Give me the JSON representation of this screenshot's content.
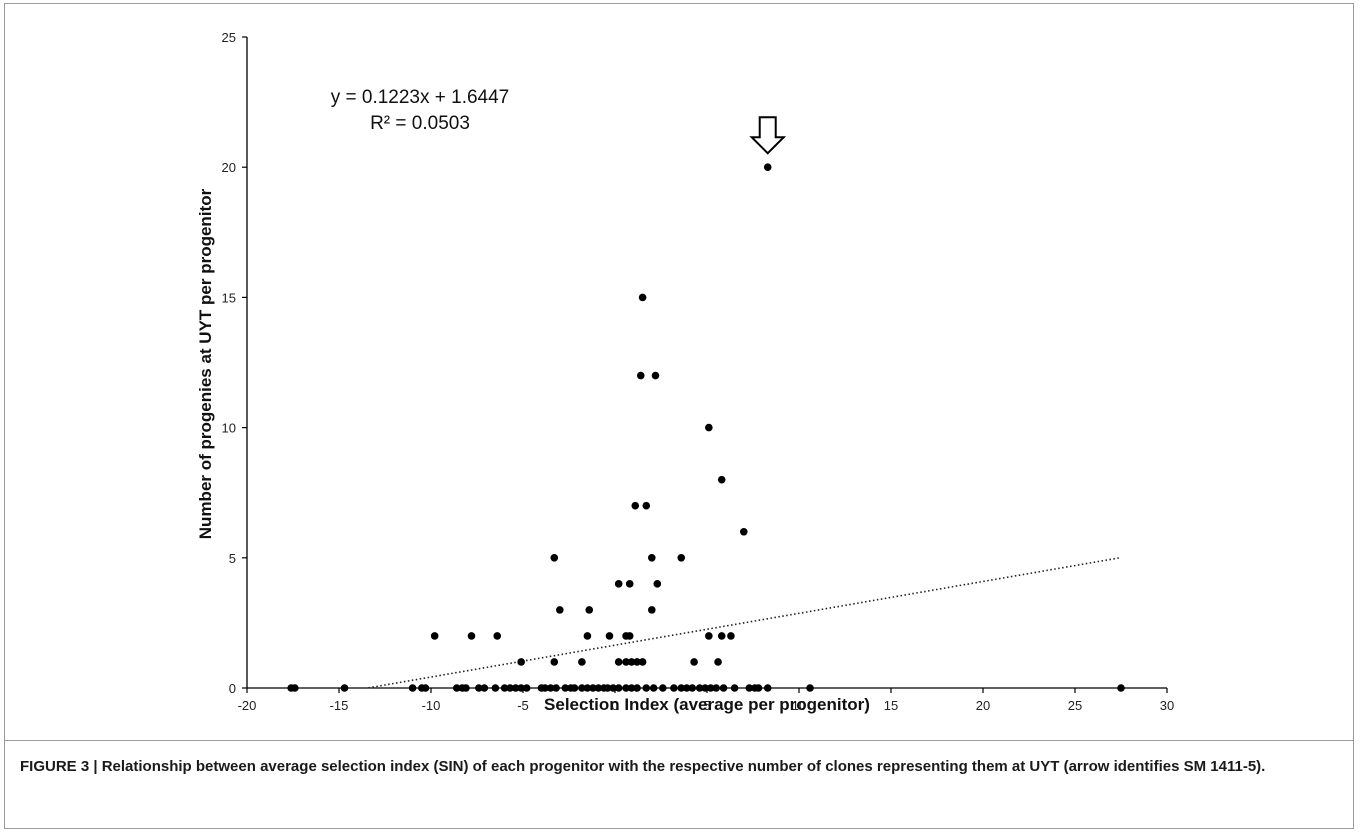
{
  "chart_data": {
    "type": "scatter",
    "title": "",
    "xlabel": "Selection Index (average per progenitor)",
    "ylabel": "Number of progenies at UYT per progenitor",
    "xlim": [
      -20,
      30
    ],
    "ylim": [
      0,
      25
    ],
    "x_ticks": [
      "-20",
      "-15",
      "-10",
      "-5",
      "0",
      "5",
      "10",
      "15",
      "20",
      "25",
      "30"
    ],
    "y_ticks": [
      "0",
      "5",
      "10",
      "15",
      "20",
      "25"
    ],
    "grid": false,
    "legend": "none",
    "point_color": "#000000",
    "trendline": {
      "style": "dotted",
      "slope": 0.1223,
      "intercept": 1.6447,
      "x_range": [
        -13.4,
        27.5
      ],
      "equation": "y = 0.1223x + 1.6447",
      "r_squared": "R² = 0.0503"
    },
    "annotation": {
      "type": "arrow",
      "x": 8.3,
      "y": 20
    },
    "points": [
      {
        "x": -17.6,
        "y": 0
      },
      {
        "x": -17.4,
        "y": 0
      },
      {
        "x": -14.7,
        "y": 0
      },
      {
        "x": -11.0,
        "y": 0
      },
      {
        "x": -10.5,
        "y": 0
      },
      {
        "x": -10.3,
        "y": 0
      },
      {
        "x": -8.6,
        "y": 0
      },
      {
        "x": -8.3,
        "y": 0
      },
      {
        "x": -8.1,
        "y": 0
      },
      {
        "x": -7.4,
        "y": 0
      },
      {
        "x": -7.1,
        "y": 0
      },
      {
        "x": -6.5,
        "y": 0
      },
      {
        "x": -6.0,
        "y": 0
      },
      {
        "x": -5.7,
        "y": 0
      },
      {
        "x": -5.4,
        "y": 0
      },
      {
        "x": -5.1,
        "y": 0
      },
      {
        "x": -4.8,
        "y": 0
      },
      {
        "x": -4.0,
        "y": 0
      },
      {
        "x": -3.8,
        "y": 0
      },
      {
        "x": -3.5,
        "y": 0
      },
      {
        "x": -3.2,
        "y": 0
      },
      {
        "x": -2.7,
        "y": 0
      },
      {
        "x": -2.4,
        "y": 0
      },
      {
        "x": -2.2,
        "y": 0
      },
      {
        "x": -1.8,
        "y": 0
      },
      {
        "x": -1.5,
        "y": 0
      },
      {
        "x": -1.2,
        "y": 0
      },
      {
        "x": -0.9,
        "y": 0
      },
      {
        "x": -0.6,
        "y": 0
      },
      {
        "x": -0.4,
        "y": 0
      },
      {
        "x": -0.1,
        "y": 0
      },
      {
        "x": 0.2,
        "y": 0
      },
      {
        "x": 0.6,
        "y": 0
      },
      {
        "x": 0.9,
        "y": 0
      },
      {
        "x": 1.2,
        "y": 0
      },
      {
        "x": 1.7,
        "y": 0
      },
      {
        "x": 2.1,
        "y": 0
      },
      {
        "x": 2.6,
        "y": 0
      },
      {
        "x": 3.2,
        "y": 0
      },
      {
        "x": 3.6,
        "y": 0
      },
      {
        "x": 3.9,
        "y": 0
      },
      {
        "x": 4.2,
        "y": 0
      },
      {
        "x": 4.6,
        "y": 0
      },
      {
        "x": 4.9,
        "y": 0
      },
      {
        "x": 5.2,
        "y": 0
      },
      {
        "x": 5.5,
        "y": 0
      },
      {
        "x": 5.9,
        "y": 0
      },
      {
        "x": 6.5,
        "y": 0
      },
      {
        "x": 7.3,
        "y": 0
      },
      {
        "x": 7.6,
        "y": 0
      },
      {
        "x": 7.8,
        "y": 0
      },
      {
        "x": 8.3,
        "y": 0
      },
      {
        "x": 10.6,
        "y": 0
      },
      {
        "x": 27.5,
        "y": 0
      },
      {
        "x": -5.1,
        "y": 1
      },
      {
        "x": -3.3,
        "y": 1
      },
      {
        "x": -1.8,
        "y": 1
      },
      {
        "x": 0.2,
        "y": 1
      },
      {
        "x": 0.6,
        "y": 1
      },
      {
        "x": 0.9,
        "y": 1
      },
      {
        "x": 1.2,
        "y": 1
      },
      {
        "x": 1.5,
        "y": 1
      },
      {
        "x": 4.3,
        "y": 1
      },
      {
        "x": 5.6,
        "y": 1
      },
      {
        "x": -9.8,
        "y": 2
      },
      {
        "x": -7.8,
        "y": 2
      },
      {
        "x": -6.4,
        "y": 2
      },
      {
        "x": -1.5,
        "y": 2
      },
      {
        "x": -0.3,
        "y": 2
      },
      {
        "x": 0.6,
        "y": 2
      },
      {
        "x": 0.8,
        "y": 2
      },
      {
        "x": 5.1,
        "y": 2
      },
      {
        "x": 5.8,
        "y": 2
      },
      {
        "x": 6.3,
        "y": 2
      },
      {
        "x": -3.0,
        "y": 3
      },
      {
        "x": -1.4,
        "y": 3
      },
      {
        "x": 2.0,
        "y": 3
      },
      {
        "x": 0.2,
        "y": 4
      },
      {
        "x": 0.8,
        "y": 4
      },
      {
        "x": 2.3,
        "y": 4
      },
      {
        "x": -3.3,
        "y": 5
      },
      {
        "x": 2.0,
        "y": 5
      },
      {
        "x": 3.6,
        "y": 5
      },
      {
        "x": 7.0,
        "y": 6
      },
      {
        "x": 1.1,
        "y": 7
      },
      {
        "x": 1.7,
        "y": 7
      },
      {
        "x": 5.8,
        "y": 8
      },
      {
        "x": 5.1,
        "y": 10
      },
      {
        "x": 1.4,
        "y": 12
      },
      {
        "x": 2.2,
        "y": 12
      },
      {
        "x": 1.5,
        "y": 15
      },
      {
        "x": 8.3,
        "y": 20
      }
    ]
  },
  "caption": {
    "label": "FIGURE 3 |",
    "text": " Relationship between average selection index (SIN) of each progenitor with the respective number of clones representing them at UYT (arrow identifies SM 1411-5)."
  }
}
